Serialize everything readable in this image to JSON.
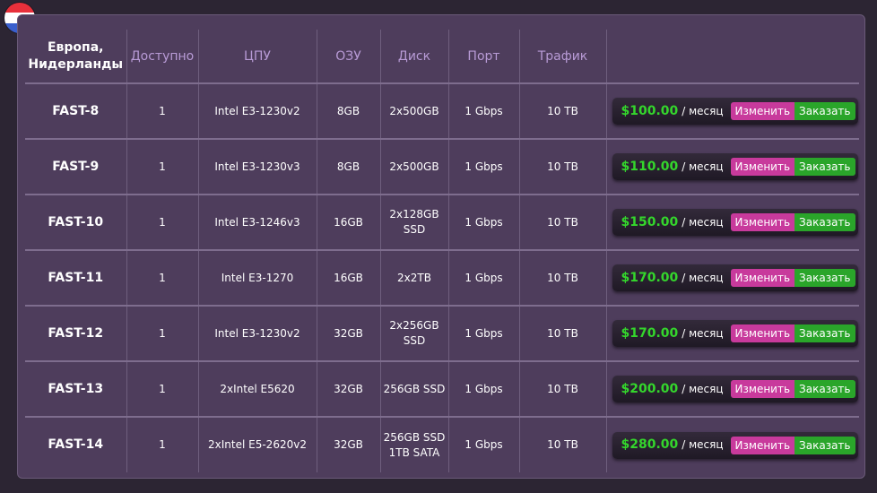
{
  "flag": {
    "name": "netherlands-flag",
    "colors": [
      "#e8303b",
      "#ffffff",
      "#3a5fcd"
    ]
  },
  "colors": {
    "price": "#34d62c",
    "change_button": "#c83a9c",
    "order_button": "#2aa52a"
  },
  "header": {
    "region": "Европа,\nНидерланды",
    "available": "Доступно",
    "cpu": "ЦПУ",
    "ram": "ОЗУ",
    "disk": "Диск",
    "port": "Порт",
    "traffic": "Трафик"
  },
  "rows": [
    {
      "name": "FAST-8",
      "available": "1",
      "cpu": "Intel E3-1230v2",
      "ram": "8GB",
      "disk": "2x500GB",
      "port": "1 Gbps",
      "traffic": "10 TB",
      "price": "$100.00",
      "per": "/ месяц",
      "change": "Изменить",
      "order": "Заказать"
    },
    {
      "name": "FAST-9",
      "available": "1",
      "cpu": "Intel E3-1230v3",
      "ram": "8GB",
      "disk": "2x500GB",
      "port": "1 Gbps",
      "traffic": "10 TB",
      "price": "$110.00",
      "per": "/ месяц",
      "change": "Изменить",
      "order": "Заказать"
    },
    {
      "name": "FAST-10",
      "available": "1",
      "cpu": "Intel E3-1246v3",
      "ram": "16GB",
      "disk": "2x128GB\nSSD",
      "port": "1 Gbps",
      "traffic": "10 TB",
      "price": "$150.00",
      "per": "/ месяц",
      "change": "Изменить",
      "order": "Заказать"
    },
    {
      "name": "FAST-11",
      "available": "1",
      "cpu": "Intel E3-1270",
      "ram": "16GB",
      "disk": "2x2TB",
      "port": "1 Gbps",
      "traffic": "10 TB",
      "price": "$170.00",
      "per": "/ месяц",
      "change": "Изменить",
      "order": "Заказать"
    },
    {
      "name": "FAST-12",
      "available": "1",
      "cpu": "Intel E3-1230v2",
      "ram": "32GB",
      "disk": "2x256GB\nSSD",
      "port": "1 Gbps",
      "traffic": "10 TB",
      "price": "$170.00",
      "per": "/ месяц",
      "change": "Изменить",
      "order": "Заказать"
    },
    {
      "name": "FAST-13",
      "available": "1",
      "cpu": "2xIntel E5620",
      "ram": "32GB",
      "disk": "256GB SSD",
      "port": "1 Gbps",
      "traffic": "10 TB",
      "price": "$200.00",
      "per": "/ месяц",
      "change": "Изменить",
      "order": "Заказать"
    },
    {
      "name": "FAST-14",
      "available": "1",
      "cpu": "2xIntel E5-2620v2",
      "ram": "32GB",
      "disk": "256GB SSD\n1TB SATA",
      "port": "1 Gbps",
      "traffic": "10 TB",
      "price": "$280.00",
      "per": "/ месяц",
      "change": "Изменить",
      "order": "Заказать"
    }
  ]
}
